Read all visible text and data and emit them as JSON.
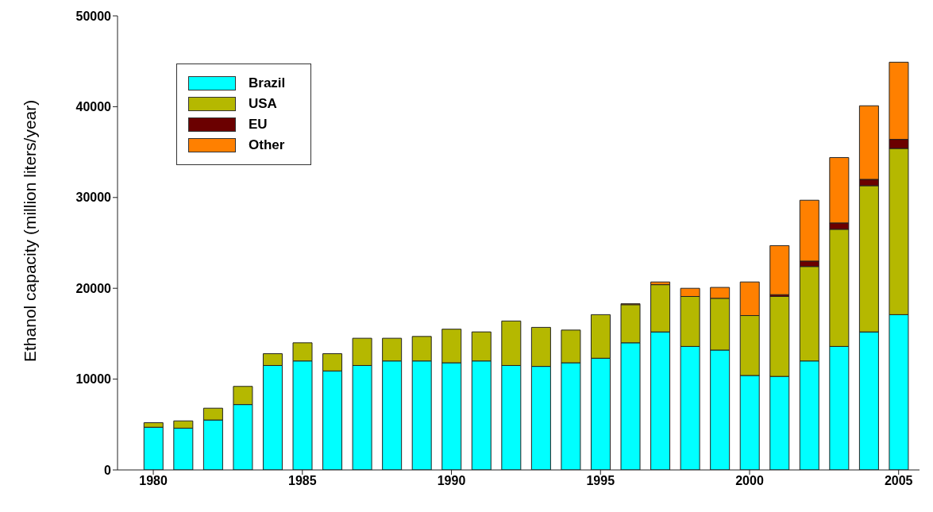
{
  "chart_data": {
    "type": "bar",
    "stacked": true,
    "ylabel": "Ethanol capacity (million liters/year)",
    "x": [
      1980,
      1981,
      1982,
      1983,
      1984,
      1985,
      1986,
      1987,
      1988,
      1989,
      1990,
      1991,
      1992,
      1993,
      1994,
      1995,
      1996,
      1997,
      1998,
      1999,
      2000,
      2001,
      2002,
      2003,
      2004,
      2005
    ],
    "series": [
      {
        "name": "Brazil",
        "color": "#00ffff",
        "values": [
          4700,
          4600,
          5500,
          7200,
          11500,
          12000,
          10900,
          11500,
          12000,
          12000,
          11800,
          12000,
          11500,
          11400,
          11800,
          12300,
          14000,
          15200,
          13600,
          13200,
          10400,
          10300,
          12000,
          13600,
          15200,
          17100
        ]
      },
      {
        "name": "USA",
        "color": "#b5b800",
        "values": [
          500,
          800,
          1300,
          2000,
          1300,
          2000,
          1900,
          3000,
          2500,
          2700,
          3700,
          3200,
          4900,
          4300,
          3600,
          4800,
          4200,
          5200,
          5500,
          5700,
          6600,
          8800,
          10400,
          12900,
          16100,
          18300
        ]
      },
      {
        "name": "EU",
        "color": "#6b0000",
        "values": [
          0,
          0,
          0,
          0,
          0,
          0,
          0,
          0,
          0,
          0,
          0,
          0,
          0,
          0,
          0,
          0,
          0,
          0,
          0,
          0,
          0,
          200,
          600,
          700,
          700,
          1000
        ]
      },
      {
        "name": "Other",
        "color": "#ff8000",
        "values": [
          0,
          0,
          0,
          0,
          0,
          0,
          0,
          0,
          0,
          0,
          0,
          0,
          0,
          0,
          0,
          0,
          100,
          300,
          900,
          1200,
          3700,
          5400,
          6700,
          7200,
          8100,
          8500
        ]
      }
    ],
    "xlim": [
      1978.8,
      2005.7
    ],
    "xticks": [
      1980,
      1985,
      1990,
      1995,
      2000,
      2005
    ],
    "ylim": [
      0,
      50000
    ],
    "yticks": [
      0,
      10000,
      20000,
      30000,
      40000,
      50000
    ],
    "grid": false,
    "legend": "top left"
  }
}
